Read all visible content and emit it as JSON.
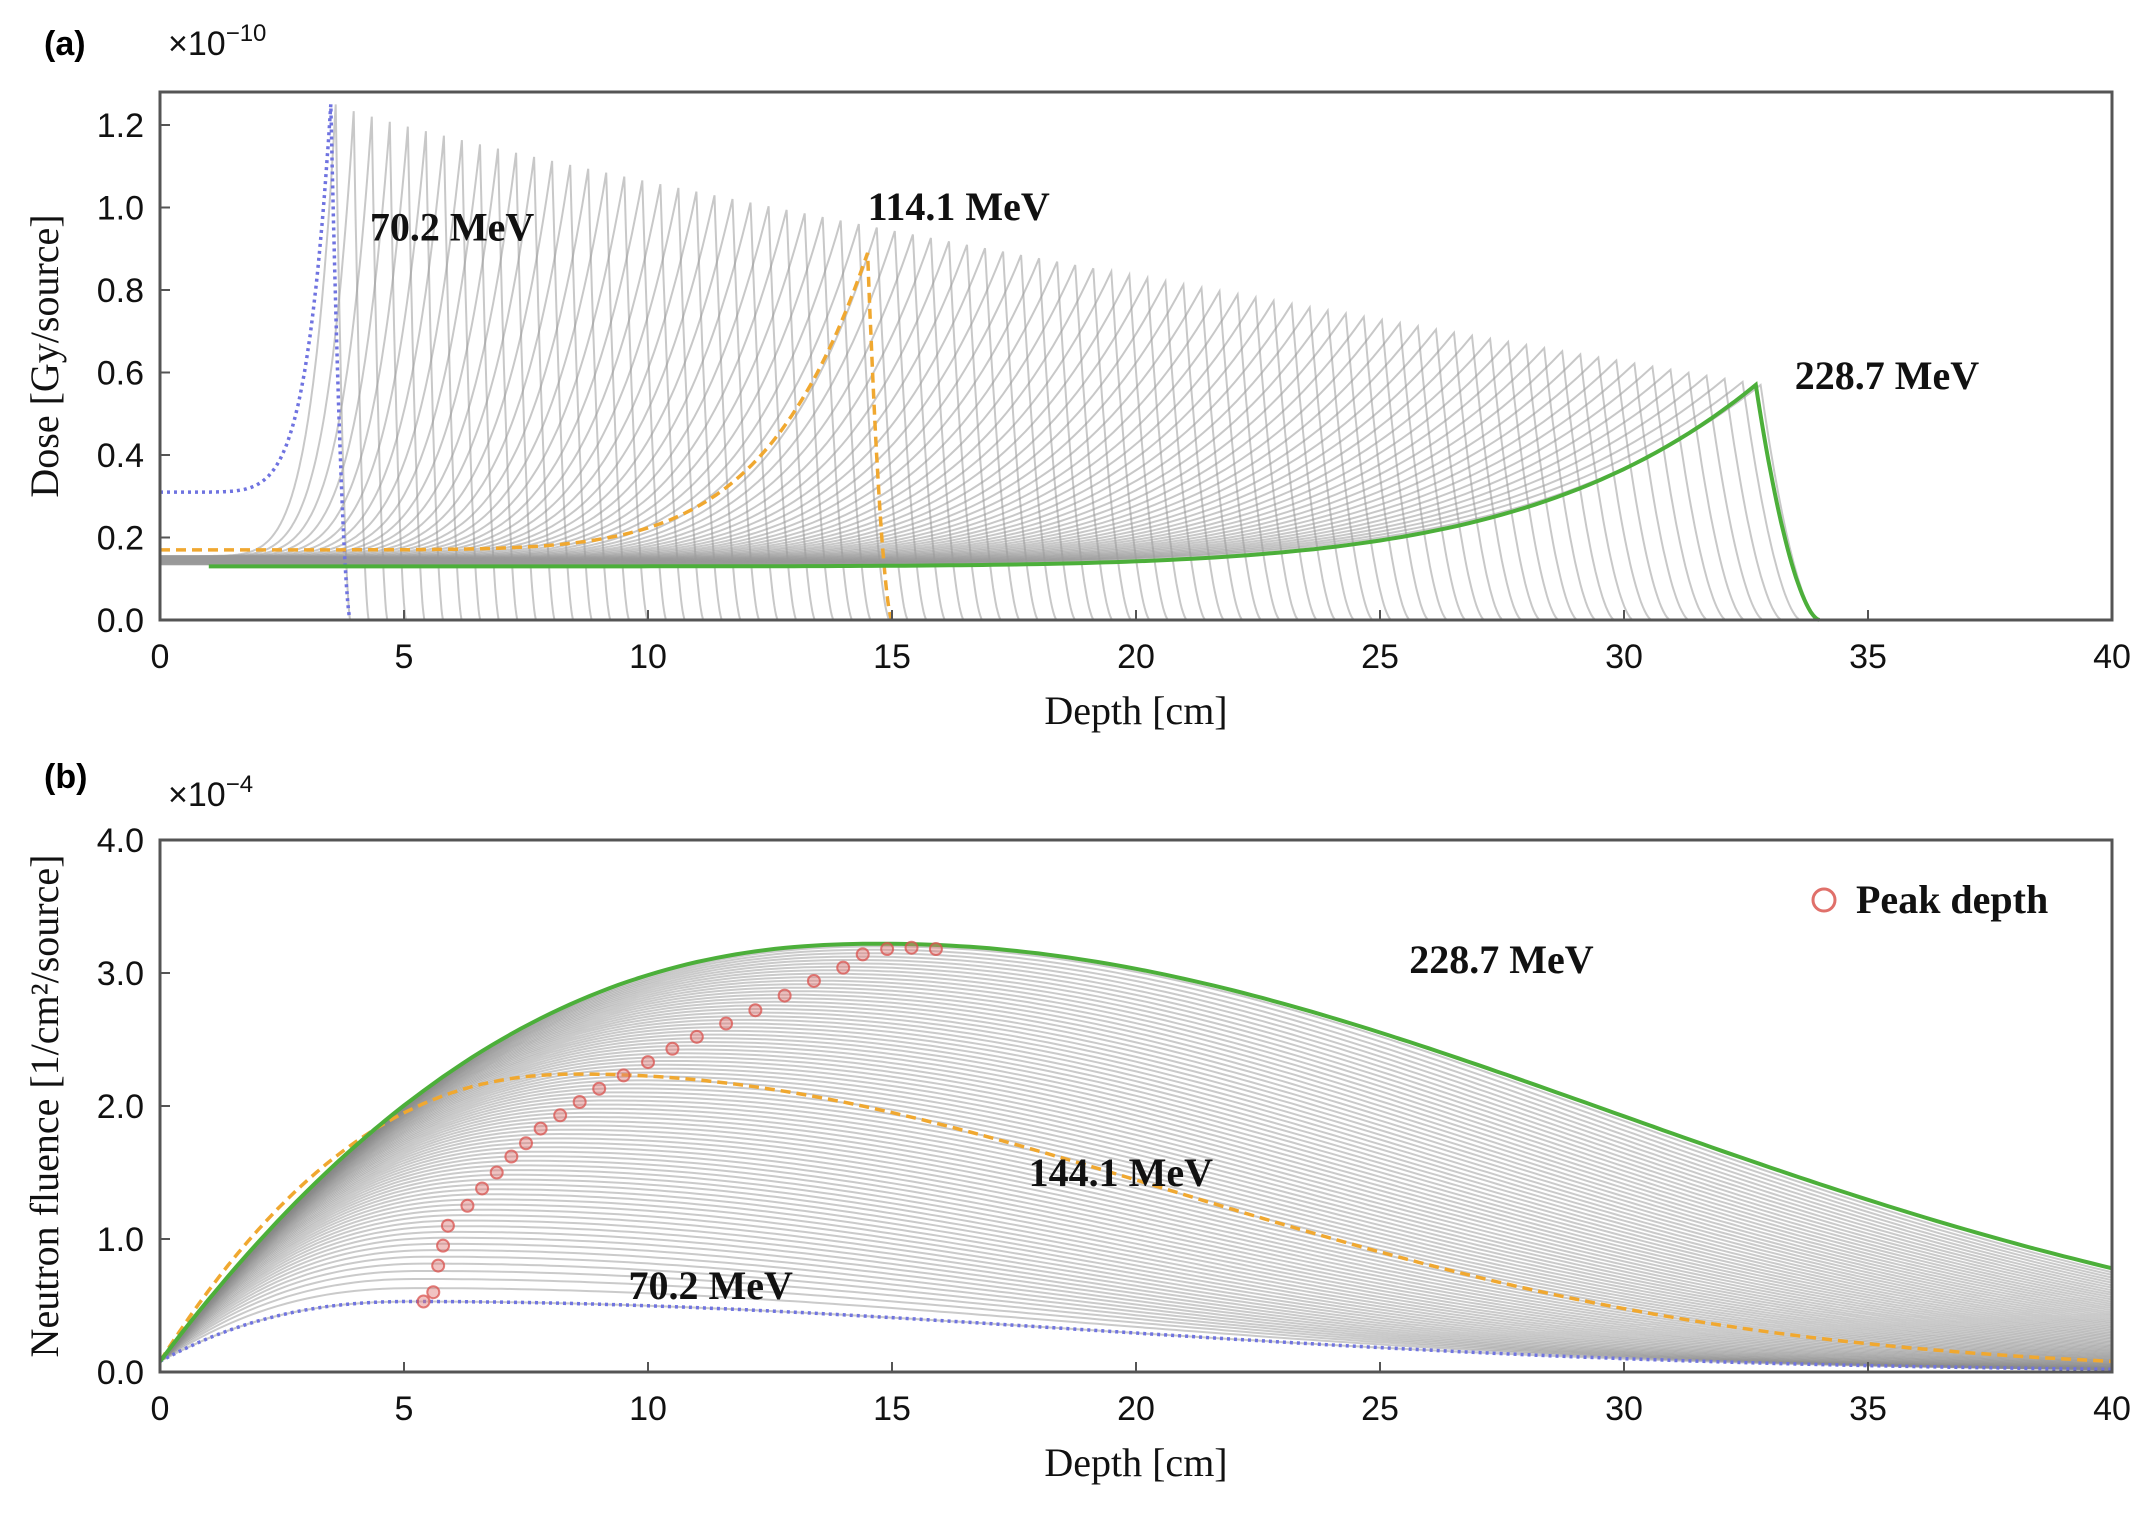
{
  "chart_data": [
    {
      "panel": "(a)",
      "type": "line",
      "multiplier": "×10",
      "multiplier_exp": "−10",
      "xlabel": "Depth [cm]",
      "ylabel": "Dose [Gy/source]",
      "xlim": [
        0,
        40
      ],
      "ylim": [
        0,
        1.28
      ],
      "xticks": [
        0,
        5,
        10,
        15,
        20,
        25,
        30,
        35,
        40
      ],
      "xtick_labels": [
        "0",
        "5",
        "10",
        "15",
        "20",
        "25",
        "30",
        "35",
        "40"
      ],
      "yticks": [
        0.0,
        0.2,
        0.4,
        0.6,
        0.8,
        1.0,
        1.2
      ],
      "ytick_labels": [
        "0.0",
        "0.2",
        "0.4",
        "0.6",
        "0.8",
        "1.0",
        "1.2"
      ],
      "background_curves": {
        "count": 80,
        "description": "grey Bragg peak curves for intermediate energies",
        "first_peak_depth": 3.6,
        "last_peak_depth": 32.8,
        "first_peak_dose": 1.25,
        "last_peak_dose": 0.57,
        "color": "#9a9a9a"
      },
      "series": [
        {
          "name": "70.2 MeV",
          "color": "#6f73e0",
          "style": "dotted",
          "peak_depth": 3.5,
          "peak_dose": 1.25,
          "entrance_dose": 0.31,
          "range_end": 3.9
        },
        {
          "name": "114.1 MeV",
          "color": "#f0a830",
          "style": "dashed",
          "peak_depth": 14.5,
          "peak_dose": 0.89,
          "entrance_dose": 0.17,
          "range_end": 15.0
        },
        {
          "name": "228.7 MeV",
          "color": "#4caf3a",
          "style": "solid",
          "peak_depth": 32.7,
          "peak_dose": 0.57,
          "entrance_dose": 0.13,
          "range_end": 34.0
        }
      ],
      "annotations": [
        {
          "text": "70.2 MeV",
          "x": 4.3,
          "y": 0.92
        },
        {
          "text": "114.1 MeV",
          "x": 14.5,
          "y": 0.97
        },
        {
          "text": "228.7 MeV",
          "x": 33.5,
          "y": 0.56
        }
      ]
    },
    {
      "panel": "(b)",
      "type": "line",
      "multiplier": "×10",
      "multiplier_exp": "−4",
      "xlabel": "Depth [cm]",
      "ylabel": "Neutron fluence [1/cm²/source]",
      "xlim": [
        0,
        40
      ],
      "ylim": [
        0,
        4.0
      ],
      "xticks": [
        0,
        5,
        10,
        15,
        20,
        25,
        30,
        35,
        40
      ],
      "xtick_labels": [
        "0",
        "5",
        "10",
        "15",
        "20",
        "25",
        "30",
        "35",
        "40"
      ],
      "yticks": [
        0.0,
        1.0,
        2.0,
        3.0,
        4.0
      ],
      "ytick_labels": [
        "0.0",
        "1.0",
        "2.0",
        "3.0",
        "4.0"
      ],
      "legend": {
        "label": "Peak depth",
        "position": "top-right",
        "marker": "open-circle",
        "color": "#e0706a"
      },
      "background_curves": {
        "count": 80,
        "description": "grey neutron fluence curves for intermediate energies",
        "color": "#8a8a8a"
      },
      "series": [
        {
          "name": "70.2 MeV",
          "color": "#6f73e0",
          "style": "dotted",
          "peak_depth": 5.2,
          "peak_value": 0.53,
          "value_at_40": 0.02
        },
        {
          "name": "144.1 MeV",
          "color": "#f0a830",
          "style": "dashed",
          "peak_depth": 8.6,
          "peak_value": 2.24,
          "value_at_40": 0.08
        },
        {
          "name": "228.7 MeV",
          "color": "#4caf3a",
          "style": "solid",
          "peak_depth": 14.8,
          "peak_value": 3.22,
          "value_at_40": 0.78
        }
      ],
      "peak_depth_points": [
        [
          5.4,
          0.53
        ],
        [
          5.6,
          0.6
        ],
        [
          5.7,
          0.8
        ],
        [
          5.8,
          0.95
        ],
        [
          5.9,
          1.1
        ],
        [
          6.3,
          1.25
        ],
        [
          6.6,
          1.38
        ],
        [
          6.9,
          1.5
        ],
        [
          7.2,
          1.62
        ],
        [
          7.5,
          1.72
        ],
        [
          7.8,
          1.83
        ],
        [
          8.2,
          1.93
        ],
        [
          8.6,
          2.03
        ],
        [
          9.0,
          2.13
        ],
        [
          9.5,
          2.23
        ],
        [
          10.0,
          2.33
        ],
        [
          10.5,
          2.43
        ],
        [
          11.0,
          2.52
        ],
        [
          11.6,
          2.62
        ],
        [
          12.2,
          2.72
        ],
        [
          12.8,
          2.83
        ],
        [
          13.4,
          2.94
        ],
        [
          14.0,
          3.04
        ],
        [
          14.4,
          3.14
        ],
        [
          14.9,
          3.18
        ],
        [
          15.4,
          3.19
        ],
        [
          15.9,
          3.18
        ]
      ],
      "annotations": [
        {
          "text": "228.7 MeV",
          "x": 25.6,
          "y": 3.0
        },
        {
          "text": "144.1 MeV",
          "x": 17.8,
          "y": 1.4
        },
        {
          "text": "70.2 MeV",
          "x": 9.6,
          "y": 0.55
        }
      ]
    }
  ]
}
